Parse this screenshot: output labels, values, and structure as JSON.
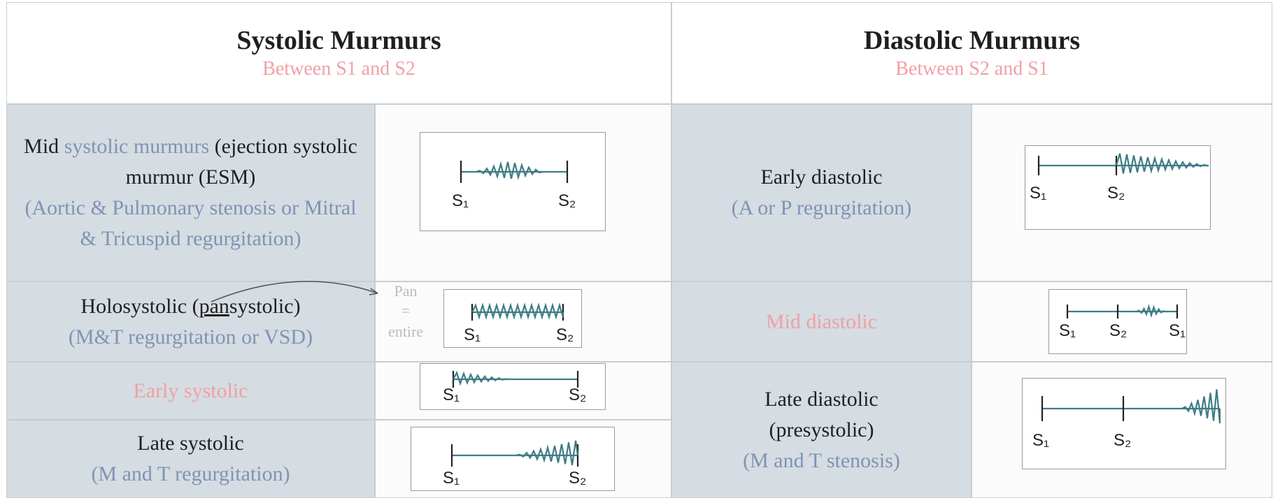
{
  "systolic": {
    "title": "Systolic Murmurs",
    "subtitle": "Between S1 and S2",
    "rows": [
      {
        "name_parts": [
          "Mid",
          "systolic murmurs",
          "(ejection systolic murmur (ESM)"
        ],
        "note": "(Aortic & Pulmonary stenosis or Mitral & Tricuspid regurgitation)",
        "labels": [
          "S₁",
          "S₂"
        ]
      },
      {
        "name_parts": [
          "Holosystolic (",
          "pan",
          "systolic)"
        ],
        "note": "(M&T regurgitation or VSD)",
        "annotation": [
          "Pan",
          "=",
          "entire"
        ],
        "labels": [
          "S₁",
          "S₂"
        ]
      },
      {
        "name": "Early systolic",
        "labels": [
          "S₁",
          "S₂"
        ]
      },
      {
        "name": "Late systolic",
        "note": "(M and T regurgitation)",
        "labels": [
          "S₁",
          "S₂"
        ]
      }
    ]
  },
  "diastolic": {
    "title": "Diastolic Murmurs",
    "subtitle": "Between S2 and S1",
    "rows": [
      {
        "name": "Early diastolic",
        "note": "(A or P regurgitation)",
        "labels": [
          "S₁",
          "S₂"
        ]
      },
      {
        "name": "Mid diastolic",
        "labels": [
          "S₁",
          "S₂",
          "S₁"
        ]
      },
      {
        "name_parts": [
          "Late diastolic",
          "(presystolic)"
        ],
        "note": "(M and T stenosis)",
        "labels": [
          "S₁",
          "S₂"
        ]
      }
    ]
  }
}
